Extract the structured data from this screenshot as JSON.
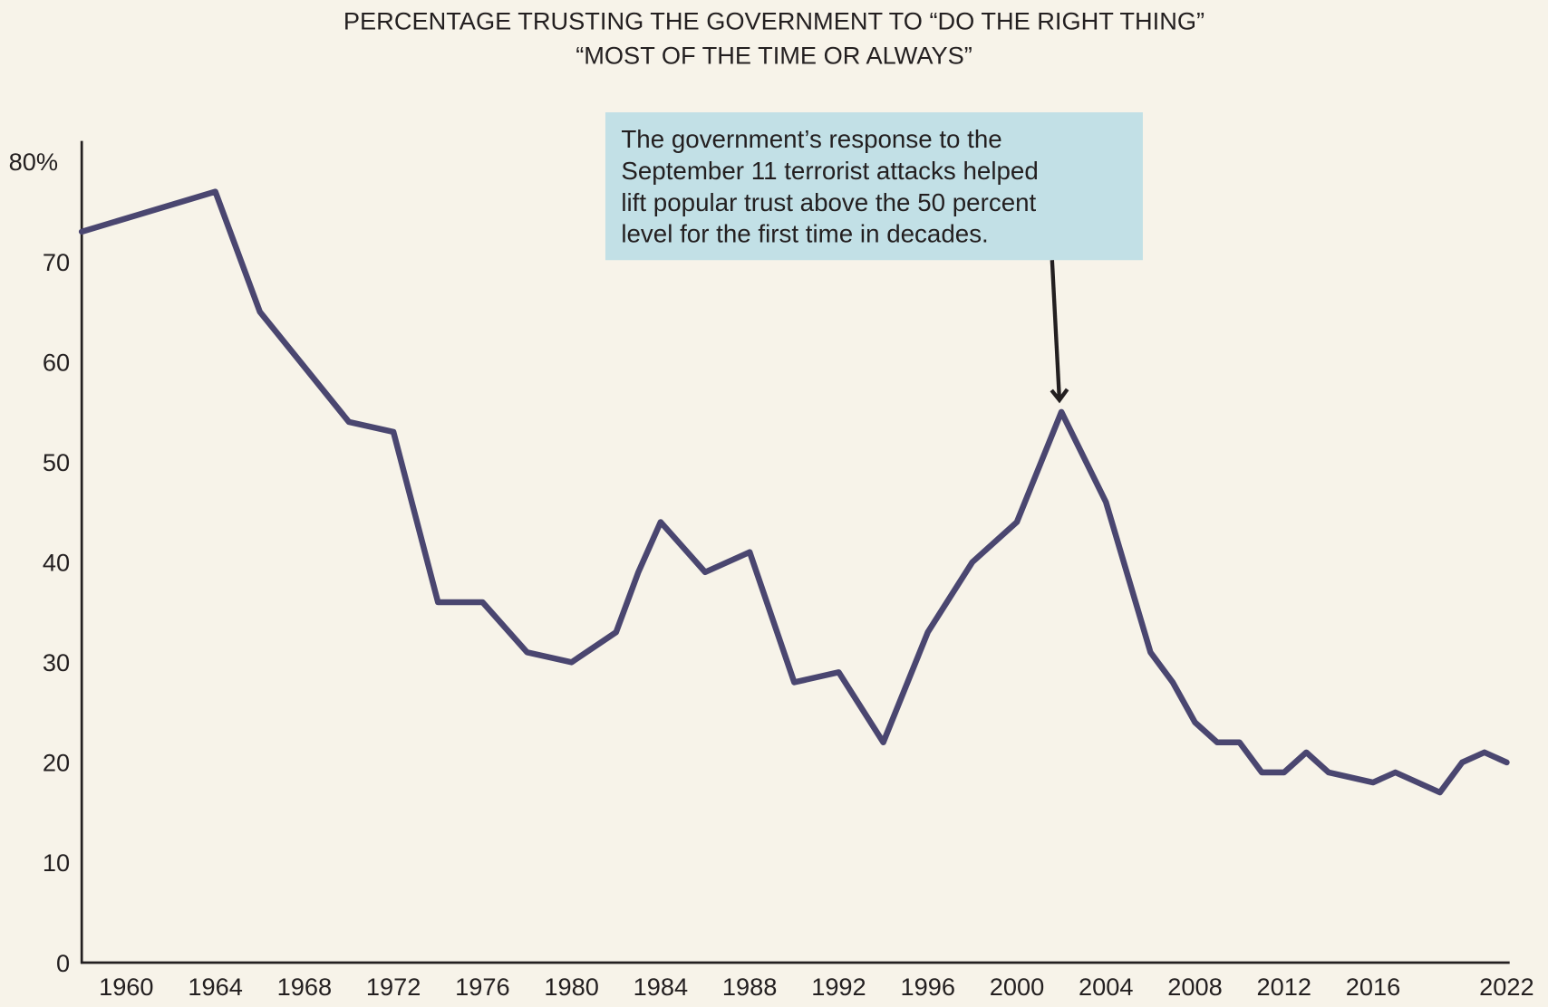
{
  "chart_data": {
    "type": "line",
    "title": [
      "PERCENTAGE TRUSTING THE GOVERNMENT TO “DO THE RIGHT THING”",
      "“MOST OF THE TIME OR ALWAYS”"
    ],
    "xlabel": "",
    "ylabel": "",
    "xlim": [
      1958,
      2022
    ],
    "ylim": [
      0,
      80
    ],
    "grid": false,
    "x_ticks": [
      "1960",
      "1964",
      "1968",
      "1972",
      "1976",
      "1980",
      "1984",
      "1988",
      "1992",
      "1996",
      "2000",
      "2004",
      "2008",
      "2012",
      "2016",
      "2022"
    ],
    "y_ticks": [
      "0",
      "10",
      "20",
      "30",
      "40",
      "50",
      "60",
      "70",
      "80%"
    ],
    "series": [
      {
        "color": "#4a4670",
        "x": [
          1958,
          1964,
          1966,
          1970,
          1972,
          1974,
          1976,
          1978,
          1980,
          1982,
          1983,
          1984,
          1986,
          1988,
          1990,
          1992,
          1994,
          1996,
          1998,
          2000,
          2002,
          2004,
          2006,
          2007,
          2008,
          2009,
          2010,
          2011,
          2012,
          2013,
          2014,
          2016,
          2017,
          2019,
          2020,
          2021,
          2022
        ],
        "y": [
          73,
          77,
          65,
          54,
          53,
          36,
          36,
          31,
          30,
          33,
          39,
          44,
          39,
          41,
          28,
          29,
          22,
          33,
          40,
          44,
          55,
          46,
          31,
          28,
          24,
          22,
          22,
          19,
          19,
          21,
          19,
          18,
          19,
          17,
          20,
          21,
          20
        ]
      }
    ],
    "annotation": {
      "lines": [
        "The government’s response to the",
        "September 11 terrorist attacks helped",
        "lift popular trust above the 50 percent",
        "level for the first time in decades."
      ],
      "target_x": 2002,
      "target_y": 55,
      "box_color": "#c2e0e6"
    },
    "background": "#f7f3e9"
  }
}
